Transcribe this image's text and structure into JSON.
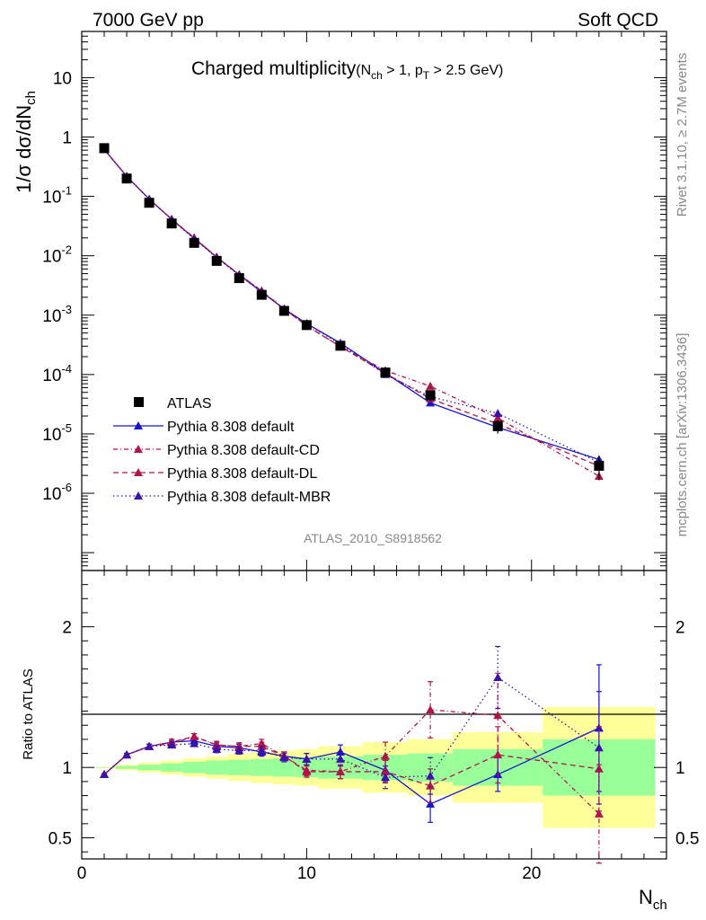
{
  "header": {
    "energy_label": "7000 GeV pp",
    "process_label": "Soft QCD"
  },
  "side_labels": {
    "rivet": "Rivet 3.1.10, ≥ 2.7M events",
    "mcplots": "mcplots.cern.ch [arXiv:1306.3436]"
  },
  "chart_data": {
    "type": "line",
    "title": "Charged multiplicity",
    "title_cuts": {
      "n_sub": "ch",
      "cut1": " > 1, p",
      "pt_sub": "T",
      "cut2": " > 2.5 GeV)"
    },
    "analysis_label": "ATLAS_2010_S8918562",
    "ylabel_main": "1/σ dσ/dN",
    "ylabel_main_sub": "ch",
    "ylabel_ratio": "Ratio to ATLAS",
    "xlabel": "N",
    "xlabel_sub": "ch",
    "xlim": [
      0,
      26
    ],
    "ylim_main": [
      5e-08,
      60
    ],
    "yscale_main": "log",
    "ylim_ratio": [
      0.35,
      2.4
    ],
    "xticks": [
      0,
      10,
      20
    ],
    "yticks_main": [
      {
        "base": "10",
        "exp": "-6",
        "value": 1e-06
      },
      {
        "base": "10",
        "exp": "-5",
        "value": 1e-05
      },
      {
        "base": "10",
        "exp": "-4",
        "value": 0.0001
      },
      {
        "base": "10",
        "exp": "-3",
        "value": 0.001
      },
      {
        "base": "10",
        "exp": "-2",
        "value": 0.01
      },
      {
        "base": "10",
        "exp": "-1",
        "value": 0.1
      },
      {
        "base": "1",
        "exp": "",
        "value": 1
      },
      {
        "base": "10",
        "exp": "",
        "value": 10
      }
    ],
    "yticks_ratio": [
      {
        "label": "0.5",
        "value": 0.5
      },
      {
        "label": "1",
        "value": 1
      },
      {
        "label": "2",
        "value": 2
      }
    ],
    "legend_placement": "lower-left",
    "x": [
      1,
      2,
      3,
      4,
      5,
      6,
      7,
      8,
      9,
      10,
      11.5,
      13.5,
      15.5,
      18.5,
      23
    ],
    "bin_edges": [
      0.5,
      1.5,
      2.5,
      3.5,
      4.5,
      5.5,
      6.5,
      7.5,
      8.5,
      9.5,
      10.5,
      12.5,
      14.5,
      16.5,
      20.5,
      25.5
    ],
    "data": {
      "name": "ATLAS",
      "values": [
        0.65,
        0.2,
        0.078,
        0.035,
        0.0165,
        0.0082,
        0.0042,
        0.0022,
        0.00118,
        0.00068,
        0.000305,
        0.000108,
        4.5e-05,
        1.35e-05,
        2.9e-06
      ],
      "band_inner": [
        0.002,
        0.01,
        0.02,
        0.03,
        0.04,
        0.05,
        0.055,
        0.06,
        0.065,
        0.07,
        0.08,
        0.09,
        0.1,
        0.13,
        0.2
      ],
      "band_outer": [
        0.004,
        0.02,
        0.035,
        0.05,
        0.065,
        0.08,
        0.095,
        0.11,
        0.12,
        0.13,
        0.15,
        0.18,
        0.2,
        0.25,
        0.43
      ]
    },
    "series": [
      {
        "name": "Pythia 8.308 default",
        "color": "#1414d2",
        "dash": "",
        "ratio": [
          0.95,
          1.09,
          1.15,
          1.18,
          1.19,
          1.15,
          1.14,
          1.11,
          1.08,
          1.06,
          1.11,
          0.98,
          0.74,
          0.95,
          1.28
        ],
        "ratio_err": [
          0.005,
          0.01,
          0.015,
          0.02,
          0.02,
          0.025,
          0.025,
          0.03,
          0.03,
          0.04,
          0.05,
          0.08,
          0.13,
          0.12,
          0.45
        ]
      },
      {
        "name": "Pythia 8.308 default-CD",
        "color": "#b0144d",
        "dash": "5,3,1,3",
        "ratio": [
          0.95,
          1.09,
          1.15,
          1.17,
          1.22,
          1.16,
          1.15,
          1.17,
          1.08,
          0.98,
          0.97,
          1.08,
          1.41,
          1.37,
          0.67
        ],
        "ratio_err": [
          0.005,
          0.01,
          0.015,
          0.02,
          0.02,
          0.025,
          0.025,
          0.03,
          0.03,
          0.04,
          0.05,
          0.1,
          0.2,
          0.3,
          0.35
        ]
      },
      {
        "name": "Pythia 8.308 default-DL",
        "color": "#b0144d",
        "dash": "6,4",
        "ratio": [
          0.95,
          1.09,
          1.15,
          1.18,
          1.22,
          1.16,
          1.15,
          1.15,
          1.08,
          0.97,
          0.97,
          0.97,
          0.87,
          1.09,
          0.99
        ],
        "ratio_err": [
          0.005,
          0.01,
          0.015,
          0.02,
          0.02,
          0.025,
          0.025,
          0.03,
          0.03,
          0.04,
          0.05,
          0.08,
          0.12,
          0.2,
          0.3
        ]
      },
      {
        "name": "Pythia 8.308 default-MBR",
        "color": "#3a13a8",
        "dash": "1.5,3",
        "ratio": [
          0.95,
          1.09,
          1.15,
          1.16,
          1.17,
          1.13,
          1.12,
          1.12,
          1.07,
          1.06,
          1.06,
          0.93,
          0.94,
          1.64,
          1.14
        ],
        "ratio_err": [
          0.005,
          0.01,
          0.015,
          0.02,
          0.02,
          0.025,
          0.025,
          0.03,
          0.03,
          0.04,
          0.05,
          0.08,
          0.13,
          0.22,
          0.4
        ]
      }
    ],
    "colors": {
      "band_inner": "#99ff99",
      "band_outer": "#ffff99"
    }
  }
}
